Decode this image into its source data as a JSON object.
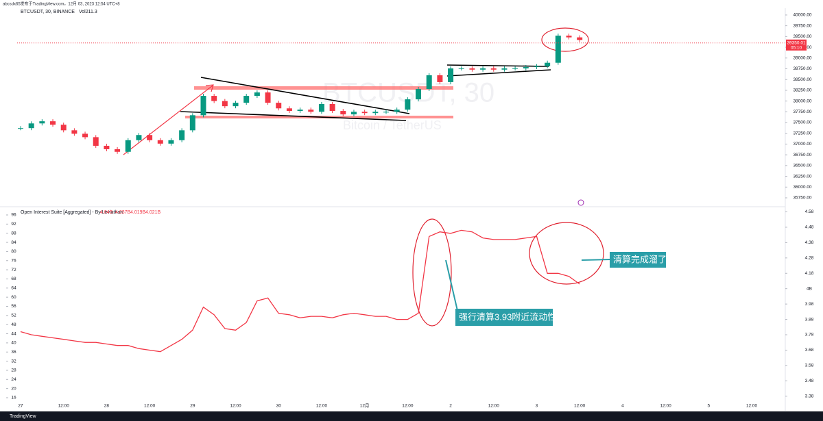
{
  "header": {
    "publisher": "abcsdx65发布于TradingView.com，12月 03, 2023 12:54 UTC+8",
    "footer": "TradingView"
  },
  "chart_data": [
    {
      "type": "candlestick",
      "title": "BTCUSDT, 30, BINANCE",
      "volume": "Vol211.3",
      "watermark": "BTCUSDT, 30",
      "subtitle": "Bitcoin / TetherUS",
      "up_color": "#089981",
      "down_color": "#f23645",
      "last_price": 39350.01,
      "countdown": "05:10",
      "values": [
        37370,
        37480,
        37530,
        37450,
        37320,
        37240,
        37160,
        36960,
        36880,
        36820,
        37090,
        37210,
        37090,
        37010,
        37090,
        37320,
        37670,
        38120,
        38000,
        37880,
        37960,
        38120,
        38200,
        37960,
        37830,
        37770,
        37800,
        37750,
        37930,
        37770,
        37690,
        37750,
        37720,
        37750,
        37750,
        37800,
        38040,
        38280,
        38600,
        38440,
        38760,
        38760,
        38730,
        38760,
        38730,
        38760,
        38760,
        38790,
        38810,
        38890,
        39520,
        39480,
        39420,
        null,
        null,
        null,
        null,
        null,
        null,
        null,
        null,
        null,
        null,
        null,
        null,
        null,
        null,
        null,
        null
      ],
      "ylim": [
        35575,
        40110
      ],
      "yticks": [
        {
          "value": 40000,
          "label": "40000.00"
        },
        {
          "value": 39750,
          "label": "39750.00"
        },
        {
          "value": 39500,
          "label": "39500.00"
        },
        {
          "value": 39250,
          "label": "39250.00"
        },
        {
          "value": 39000,
          "label": "39000.00"
        },
        {
          "value": 38750,
          "label": "38750.00"
        },
        {
          "value": 38500,
          "label": "38500.00"
        },
        {
          "value": 38250,
          "label": "38250.00"
        },
        {
          "value": 38000,
          "label": "38000.00"
        },
        {
          "value": 37750,
          "label": "37750.00"
        },
        {
          "value": 37500,
          "label": "37500.00"
        },
        {
          "value": 37250,
          "label": "37250.00"
        },
        {
          "value": 37000,
          "label": "37000.00"
        },
        {
          "value": 36750,
          "label": "36750.00"
        },
        {
          "value": 36500,
          "label": "36500.00"
        },
        {
          "value": 36250,
          "label": "36250.00"
        },
        {
          "value": 36000,
          "label": "36000.00"
        },
        {
          "value": 35750,
          "label": "35750.00"
        }
      ],
      "grid": false
    },
    {
      "type": "line",
      "title": "Open Interest Suite [Aggregated] - By Leviathan",
      "legend_values": [
        "4.04B",
        "4.037B",
        "4.019B",
        "4.021B"
      ],
      "color": "#f23645",
      "axis": "y2",
      "categories": [
        "27",
        null,
        null,
        null,
        "12:00",
        null,
        null,
        null,
        "28",
        null,
        null,
        null,
        "12:00",
        null,
        null,
        null,
        "29",
        null,
        null,
        null,
        "12:00",
        null,
        null,
        null,
        "30",
        null,
        null,
        null,
        "12:00",
        null,
        null,
        null,
        "12月",
        null,
        null,
        null,
        "12:00",
        null,
        null,
        null,
        "2",
        null,
        null,
        null,
        "12:00",
        null,
        null,
        null,
        "3",
        null,
        null,
        null,
        "12:00",
        null,
        null,
        null,
        "4",
        null,
        null,
        null,
        "12:00",
        null,
        null,
        null,
        "5",
        null,
        null,
        null,
        "12:00"
      ],
      "values": [
        3.8,
        3.78,
        3.77,
        3.76,
        3.75,
        3.74,
        3.73,
        3.73,
        3.72,
        3.71,
        3.71,
        3.69,
        3.68,
        3.67,
        3.71,
        3.75,
        3.81,
        3.96,
        3.91,
        3.82,
        3.81,
        3.86,
        4.0,
        4.02,
        3.92,
        3.91,
        3.89,
        3.9,
        3.9,
        3.89,
        3.91,
        3.92,
        3.91,
        3.9,
        3.9,
        3.88,
        3.88,
        3.92,
        4.42,
        4.45,
        4.44,
        4.46,
        4.45,
        4.41,
        4.4,
        4.4,
        4.4,
        4.41,
        4.42,
        4.18,
        4.18,
        4.16,
        4.11,
        null,
        null,
        null,
        null,
        null,
        null,
        null,
        null,
        null,
        null,
        null,
        null,
        null,
        null,
        null,
        null
      ],
      "ylim": [
        13.3,
        98.7
      ],
      "yticks": [
        96,
        92,
        88,
        84,
        80,
        76,
        72,
        68,
        64,
        60,
        56,
        52,
        48,
        44,
        40,
        36,
        32,
        28,
        24,
        20,
        16
      ],
      "y2lim": [
        3.33,
        4.6
      ],
      "y2ticks": [
        4.58,
        4.48,
        4.38,
        4.28,
        4.18,
        {
          "value": 4.08,
          "label": "4B"
        },
        3.98,
        3.88,
        3.78,
        3.68,
        3.58,
        3.48,
        3.38
      ],
      "annotations": [
        "强行清算3.93附近流动性",
        "清算完成溜了"
      ],
      "grid": false
    }
  ]
}
